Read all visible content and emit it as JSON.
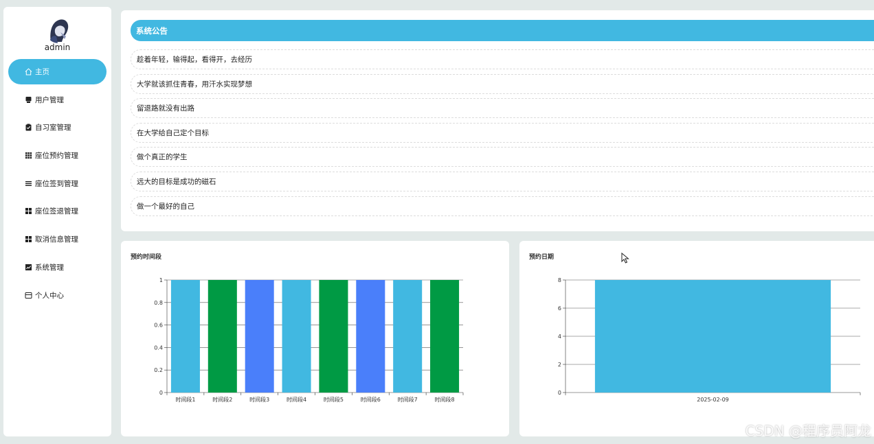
{
  "sidebar": {
    "username": "admin",
    "items": [
      {
        "label": "主页",
        "icon": "home-icon",
        "active": true
      },
      {
        "label": "用户管理",
        "icon": "user-card-icon"
      },
      {
        "label": "自习室管理",
        "icon": "clipboard-check-icon"
      },
      {
        "label": "座位预约管理",
        "icon": "grid-icon"
      },
      {
        "label": "座位签到管理",
        "icon": "list-icon"
      },
      {
        "label": "座位签退管理",
        "icon": "apps-icon"
      },
      {
        "label": "取消信息管理",
        "icon": "apps-icon"
      },
      {
        "label": "系统管理",
        "icon": "chart-icon"
      },
      {
        "label": "个人中心",
        "icon": "profile-card-icon"
      }
    ]
  },
  "notice": {
    "title": "系统公告",
    "items": [
      "趁着年轻，输得起，看得开，去经历",
      "大学就该抓住青春，用汗水实现梦想",
      "留退路就没有出路",
      "在大学给自己定个目标",
      "做个真正的学生",
      "远大的目标是成功的磁石",
      "做一个最好的自己"
    ]
  },
  "charts": {
    "time_slot": {
      "title": "预约时间段"
    },
    "date": {
      "title": "预约日期"
    }
  },
  "chart_data": [
    {
      "type": "bar",
      "title": "预约时间段",
      "categories": [
        "时间段1",
        "时间段2",
        "时间段3",
        "时间段4",
        "时间段5",
        "时间段6",
        "时间段7",
        "时间段8"
      ],
      "values": [
        1,
        1,
        1,
        1,
        1,
        1,
        1,
        1
      ],
      "colors": [
        "#41b8e1",
        "#009a44",
        "#4a7ffa",
        "#41b8e1",
        "#009a44",
        "#4a7ffa",
        "#41b8e1",
        "#009a44"
      ],
      "ylim": [
        0,
        1
      ],
      "yticks": [
        "0",
        "0.2",
        "0.4",
        "0.6",
        "0.8",
        "1"
      ],
      "grid": true
    },
    {
      "type": "bar",
      "title": "预约日期",
      "categories": [
        "2025-02-09"
      ],
      "values": [
        8
      ],
      "colors": [
        "#41b8e1"
      ],
      "ylim": [
        0,
        8
      ],
      "yticks": [
        "0",
        "2",
        "4",
        "6",
        "8"
      ],
      "grid": true
    }
  ],
  "watermark": "CSDN @程序员阿龙",
  "colors": {
    "accent": "#41b8e1",
    "green": "#009a44",
    "blue": "#4a7ffa"
  }
}
